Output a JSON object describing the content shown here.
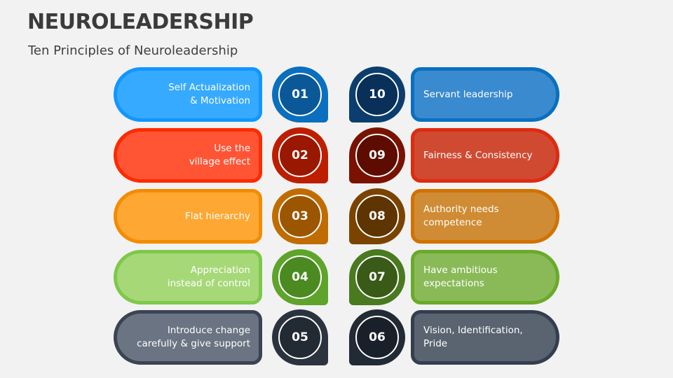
{
  "header": {
    "title": "NEUROLEADERSHIP",
    "subtitle": "Ten Principles of Neuroleadership"
  },
  "left_items": [
    {
      "number": "01",
      "label": "Self Actualization\n& Motivation",
      "border": "#1296ff",
      "fill": "#36aaff",
      "drop": "#0a6fbe",
      "inner": "#0a5898"
    },
    {
      "number": "02",
      "label": "Use the\nvillage effect",
      "border": "#ff2a00",
      "fill": "#ff5535",
      "drop": "#be1e00",
      "inner": "#9a1800"
    },
    {
      "number": "03",
      "label": "Flat hierarchy",
      "border": "#f28c00",
      "fill": "#ffa733",
      "drop": "#c06c00",
      "inner": "#9c5600"
    },
    {
      "number": "04",
      "label": "Appreciation\ninstead of control",
      "border": "#7ec84a",
      "fill": "#a6d878",
      "drop": "#5ea42a",
      "inner": "#4a8a20"
    },
    {
      "number": "05",
      "label": "Introduce change\ncarefully & give support",
      "border": "#3a4452",
      "fill": "#6a7482",
      "drop": "#2b333f",
      "inner": "#222a34"
    }
  ],
  "right_items": [
    {
      "number": "10",
      "label": "Servant leadership",
      "border": "#0a6fc0",
      "fill": "#3a8ad0",
      "drop": "#0b3e6e",
      "inner": "#083058"
    },
    {
      "number": "09",
      "label": "Fairness & Consistency",
      "border": "#e02a10",
      "fill": "#d04a32",
      "drop": "#7a1202",
      "inner": "#5e0c00"
    },
    {
      "number": "08",
      "label": "Authority needs\ncompetence",
      "border": "#d07200",
      "fill": "#d08c34",
      "drop": "#7a4400",
      "inner": "#5e3400"
    },
    {
      "number": "07",
      "label": "Have ambitious\nexpectations",
      "border": "#6aaa2a",
      "fill": "#8aba58",
      "drop": "#4a7a20",
      "inner": "#3a5a18"
    },
    {
      "number": "06",
      "label": "Vision, Identification,\nPride",
      "border": "#333f4f",
      "fill": "#5a6470",
      "drop": "#222a36",
      "inner": "#1a202a"
    }
  ]
}
